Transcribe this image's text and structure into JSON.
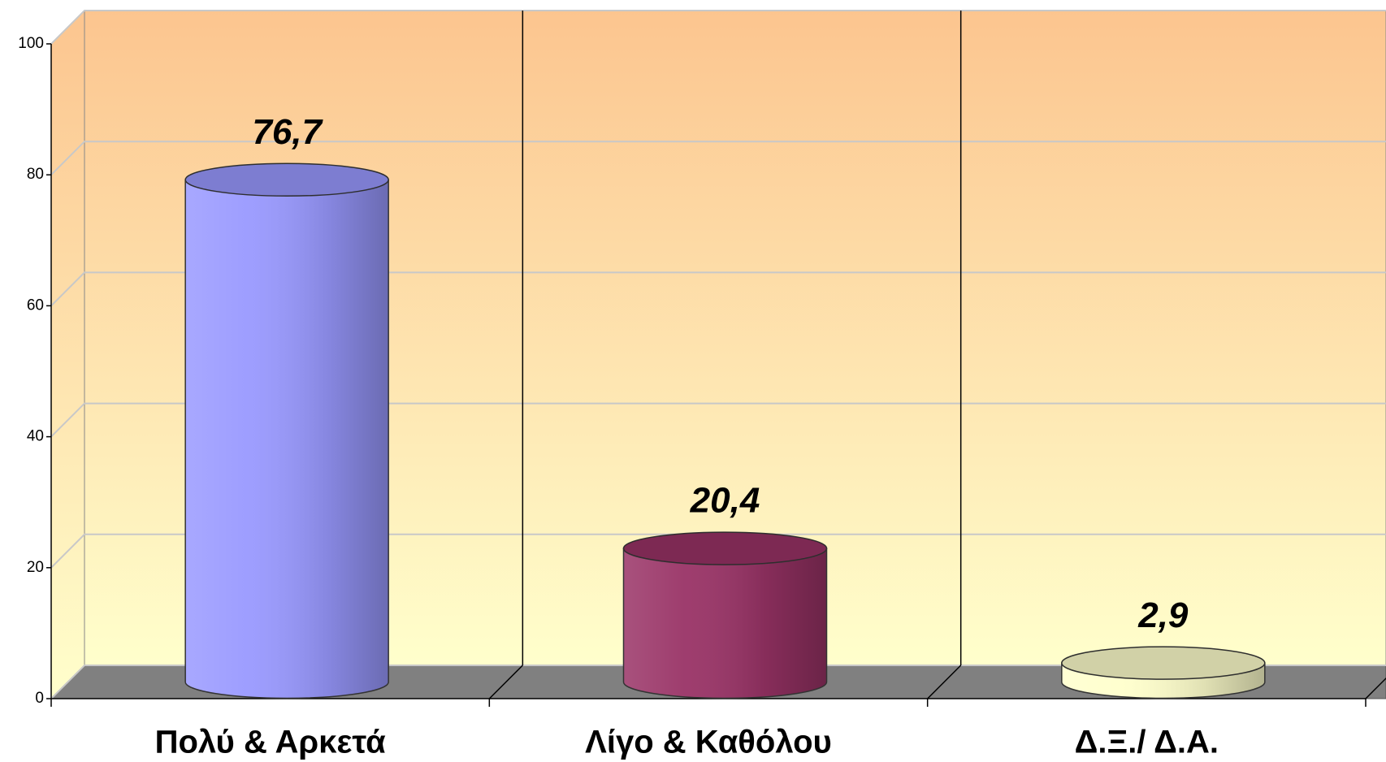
{
  "chart_data": {
    "type": "bar",
    "categories": [
      "Πολύ & Αρκετά",
      "Λίγο & Καθόλου",
      "Δ.Ξ./ Δ.Α."
    ],
    "values": [
      76.7,
      20.4,
      2.9
    ],
    "value_labels": [
      "76,7",
      "20,4",
      "2,9"
    ],
    "colors": [
      "#9999ff",
      "#993366",
      "#ffffcc"
    ],
    "ylim": [
      0,
      100
    ],
    "yticks": [
      0,
      20,
      40,
      60,
      80,
      100
    ],
    "grid": true
  }
}
